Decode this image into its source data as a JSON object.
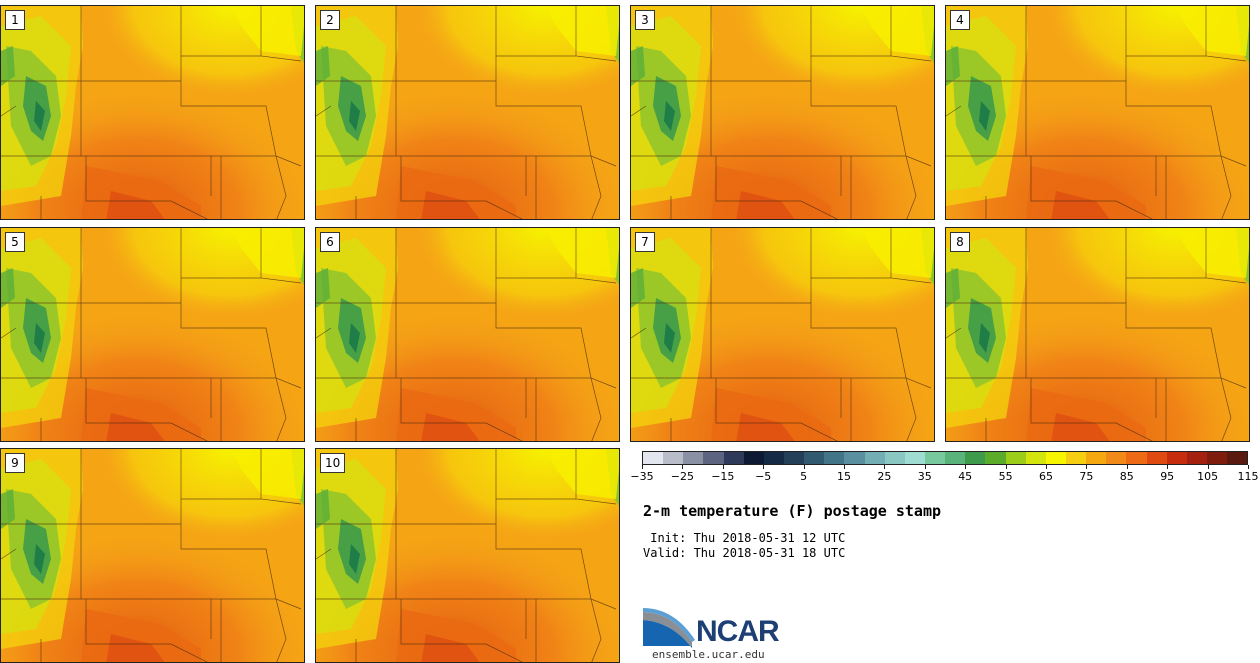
{
  "figure": {
    "title": "2-m temperature (F) postage stamp",
    "init_line": " Init: Thu 2018-05-31 12 UTC",
    "valid_line": "Valid: Thu 2018-05-31 18 UTC"
  },
  "panels": [
    "1",
    "2",
    "3",
    "4",
    "5",
    "6",
    "7",
    "8",
    "9",
    "10"
  ],
  "colorbar": {
    "tick_labels": [
      "−35",
      "−25",
      "−15",
      "−5",
      "5",
      "15",
      "25",
      "35",
      "45",
      "55",
      "65",
      "75",
      "85",
      "95",
      "105",
      "115"
    ],
    "colors": [
      "#e3e6ee",
      "#b9bdc9",
      "#8b91a4",
      "#5c6480",
      "#2f3a5a",
      "#0e1a33",
      "#152a44",
      "#243f58",
      "#315a70",
      "#427587",
      "#5a8fa0",
      "#72aeb4",
      "#8ac6c2",
      "#9fdcd1",
      "#78c99d",
      "#5bb37c",
      "#3e9b4b",
      "#5aac2a",
      "#9ccd1b",
      "#d4e40e",
      "#f8f500",
      "#f7cf12",
      "#f6a811",
      "#f28a1a",
      "#ec6b14",
      "#df4a10",
      "#c62c0e",
      "#a4200f",
      "#7e1c0e",
      "#5b1a0f"
    ]
  },
  "branding": {
    "logo_text": "NCAR",
    "url": "ensemble.ucar.edu"
  }
}
